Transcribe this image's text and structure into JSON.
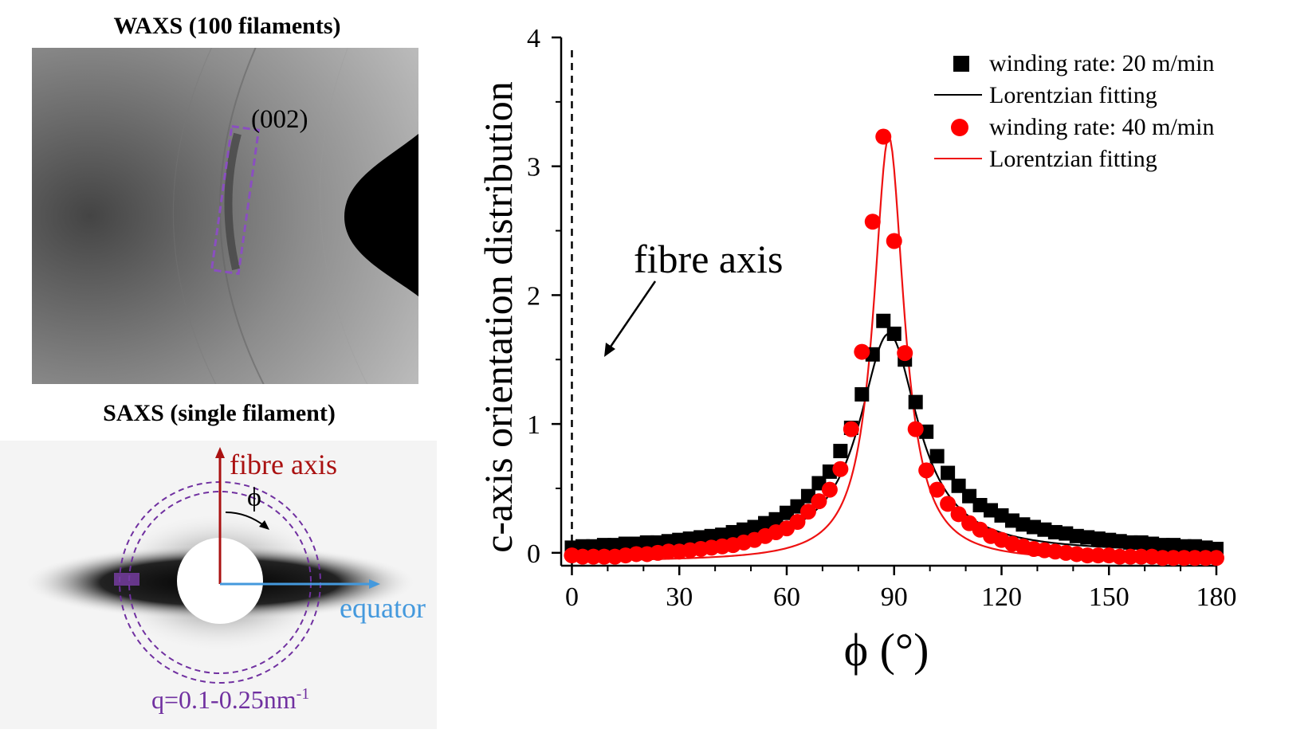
{
  "waxs": {
    "title": "WAXS (100 filaments)",
    "peak_label": "(002)"
  },
  "saxs": {
    "title": "SAXS (single filament)",
    "fibre_axis_label": "fibre axis",
    "phi_symbol": "ϕ",
    "equator_label": "equator",
    "q_label_main": "q=0.1-0.25nm",
    "q_label_sup": "-1"
  },
  "colors": {
    "series1": "#000000",
    "series2": "#ff0000",
    "fit1": "#000000",
    "fit2": "#ee1111",
    "fibre_axis_red": "#aa1111",
    "equator_blue": "#4499dd",
    "q_purple": "#7030a0"
  },
  "chart_data": {
    "type": "scatter",
    "title": "",
    "xlabel": "ϕ (°)",
    "ylabel": "c-axis orientation distribution",
    "xlim": [
      -3,
      180
    ],
    "ylim": [
      -0.1,
      4
    ],
    "xticks": [
      0,
      30,
      60,
      90,
      120,
      150,
      180
    ],
    "yticks": [
      0,
      1,
      2,
      3,
      4
    ],
    "annotation": "fibre axis",
    "reference_line_x": 0,
    "legend_position": "top-right",
    "fit_model": "lorentzian",
    "series": [
      {
        "name": "winding rate: 20 m/min",
        "marker": "square",
        "fit": {
          "name": "Lorentzian fitting",
          "y0": 0.0,
          "A": 1.7,
          "xc": 88.5,
          "w": 10
        }
      },
      {
        "name": "winding rate: 40 m/min",
        "marker": "circle",
        "fit": {
          "name": "Lorentzian fitting",
          "y0": -0.07,
          "A": 3.3,
          "xc": 88.5,
          "w": 5.2
        }
      }
    ],
    "points_x": [
      0,
      3,
      6,
      9,
      12,
      15,
      18,
      21,
      24,
      27,
      30,
      33,
      36,
      39,
      42,
      45,
      48,
      51,
      54,
      57,
      60,
      63,
      66,
      69,
      72,
      75,
      78,
      81,
      84,
      87,
      90,
      93,
      96,
      99,
      102,
      105,
      108,
      111,
      114,
      117,
      120,
      123,
      126,
      129,
      132,
      135,
      138,
      141,
      144,
      147,
      150,
      153,
      156,
      159,
      162,
      165,
      168,
      171,
      174,
      177,
      180
    ],
    "series_values": [
      [
        0.04,
        0.05,
        0.05,
        0.06,
        0.06,
        0.07,
        0.07,
        0.08,
        0.08,
        0.09,
        0.1,
        0.11,
        0.12,
        0.13,
        0.14,
        0.16,
        0.18,
        0.2,
        0.23,
        0.26,
        0.31,
        0.36,
        0.44,
        0.54,
        0.63,
        0.79,
        0.97,
        1.23,
        1.54,
        1.8,
        1.7,
        1.5,
        1.17,
        0.94,
        0.75,
        0.62,
        0.52,
        0.44,
        0.37,
        0.33,
        0.29,
        0.25,
        0.22,
        0.2,
        0.18,
        0.16,
        0.15,
        0.13,
        0.12,
        0.11,
        0.1,
        0.09,
        0.08,
        0.08,
        0.07,
        0.06,
        0.06,
        0.05,
        0.05,
        0.04,
        0.03
      ],
      [
        -0.02,
        -0.03,
        -0.03,
        -0.03,
        -0.03,
        -0.02,
        -0.01,
        -0.01,
        0.0,
        0.01,
        0.01,
        0.02,
        0.03,
        0.04,
        0.05,
        0.06,
        0.08,
        0.1,
        0.13,
        0.16,
        0.19,
        0.24,
        0.32,
        0.4,
        0.49,
        0.65,
        0.96,
        1.56,
        2.57,
        3.23,
        2.42,
        1.55,
        0.96,
        0.64,
        0.49,
        0.38,
        0.3,
        0.23,
        0.18,
        0.13,
        0.1,
        0.07,
        0.05,
        0.03,
        0.02,
        0.01,
        0.0,
        -0.01,
        -0.02,
        -0.02,
        -0.02,
        -0.03,
        -0.03,
        -0.03,
        -0.03,
        -0.04,
        -0.04,
        -0.04,
        -0.04,
        -0.04,
        -0.04
      ]
    ]
  }
}
